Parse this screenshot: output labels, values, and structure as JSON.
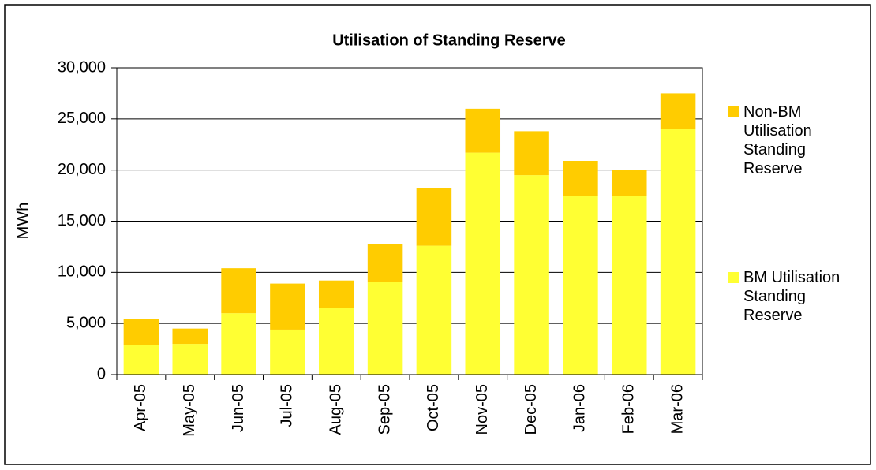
{
  "chart_data": {
    "type": "stacked_bar",
    "title": "Utilisation of Standing Reserve",
    "y_label": "MWh",
    "categories": [
      "Apr-05",
      "May-05",
      "Jun-05",
      "Jul-05",
      "Aug-05",
      "Sep-05",
      "Oct-05",
      "Nov-05",
      "Dec-05",
      "Jan-06",
      "Feb-06",
      "Mar-06"
    ],
    "series": [
      {
        "name": "BM Utilisation Standing Reserve",
        "color": "#ffff33",
        "values": [
          2900,
          3000,
          6000,
          4400,
          6500,
          9100,
          12600,
          21700,
          19500,
          17500,
          17500,
          24000
        ]
      },
      {
        "name": "Non-BM Utilisation Standing Reserve",
        "color": "#ffcc00",
        "values": [
          2500,
          1500,
          4400,
          4500,
          2700,
          3700,
          5600,
          4300,
          4300,
          3400,
          2500,
          3500
        ]
      }
    ],
    "ylim": [
      0,
      30000
    ],
    "yticks": [
      0,
      {
        "value": 5000,
        "label": "5,000"
      },
      {
        "value": 10000,
        "label": "10,000"
      },
      {
        "value": 15000,
        "label": "15,000"
      },
      {
        "value": 20000,
        "label": "20,000"
      },
      {
        "value": 25000,
        "label": "25,000"
      },
      {
        "value": 30000,
        "label": "30,000"
      }
    ],
    "grid": true,
    "legend": "right"
  }
}
